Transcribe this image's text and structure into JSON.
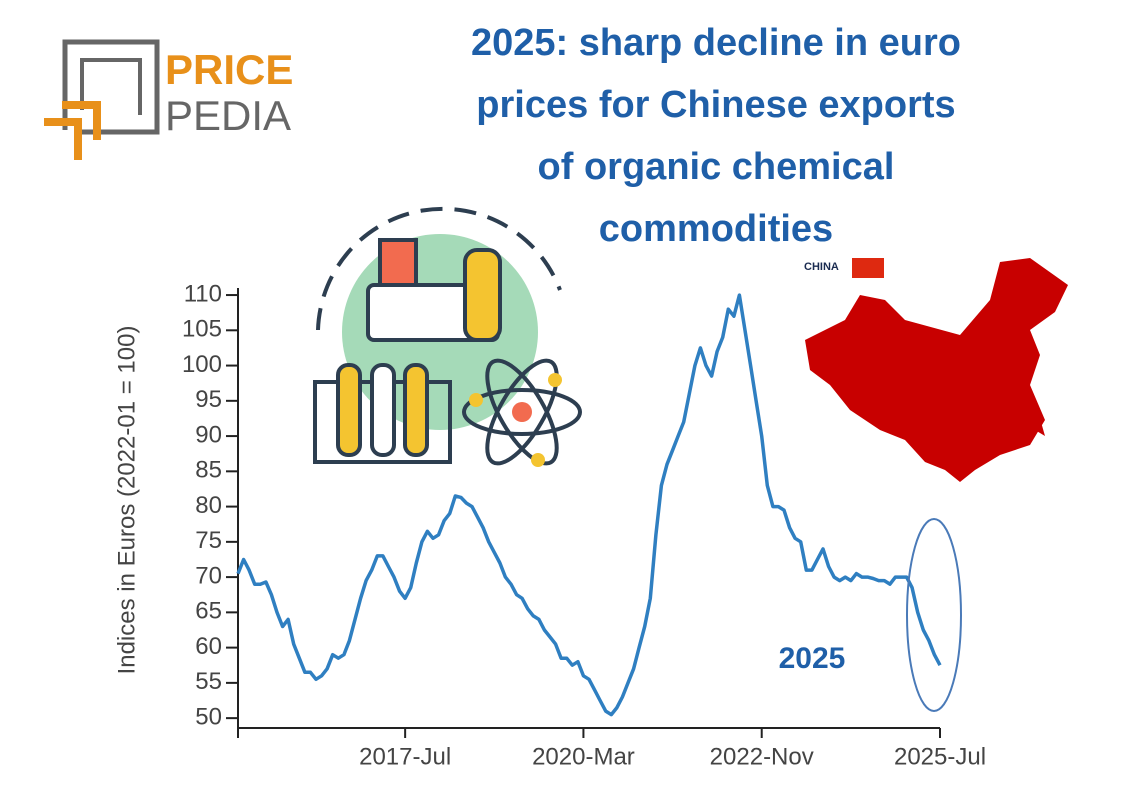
{
  "logo": {
    "line1": "PRICE",
    "line2": "PEDIA"
  },
  "map": {
    "label": "CHINA"
  },
  "chart_data": {
    "type": "line",
    "title": "2025: sharp decline in euro prices for Chinese exports of organic chemical commodities",
    "y_label": "Indices in Euros (2022-01 = 100)",
    "annotation": "2025",
    "color": "#2f7fc1",
    "categories": [
      null,
      null,
      null,
      null,
      null,
      null,
      null,
      null,
      null,
      null,
      null,
      null,
      null,
      null,
      null,
      null,
      null,
      null,
      null,
      null,
      null,
      null,
      null,
      null,
      null,
      null,
      null,
      null,
      null,
      null,
      "2017-Jul",
      null,
      null,
      null,
      null,
      null,
      null,
      null,
      null,
      null,
      null,
      null,
      null,
      null,
      null,
      null,
      null,
      null,
      null,
      null,
      null,
      null,
      null,
      null,
      null,
      null,
      null,
      null,
      null,
      null,
      null,
      null,
      "2020-Mar",
      null,
      null,
      null,
      null,
      null,
      null,
      null,
      null,
      null,
      null,
      null,
      null,
      null,
      null,
      null,
      null,
      null,
      null,
      null,
      null,
      null,
      null,
      null,
      null,
      null,
      null,
      null,
      null,
      null,
      null,
      null,
      "2022-Nov",
      null,
      null,
      null,
      null,
      null,
      null,
      null,
      null,
      null,
      null,
      null,
      null,
      null,
      null,
      null,
      null,
      null,
      null,
      null,
      null,
      null,
      null,
      null,
      null,
      null,
      null,
      null,
      null,
      null,
      null,
      null,
      "2025-Jul"
    ],
    "values": [
      70.5,
      72.5,
      71,
      69,
      69,
      69.3,
      67.5,
      65,
      63,
      64,
      60.5,
      58.5,
      56.5,
      56.5,
      55.5,
      56,
      57,
      59,
      58.5,
      59,
      61,
      64,
      67,
      69.5,
      71,
      73,
      73,
      71.5,
      70,
      68,
      67,
      68.5,
      72,
      75,
      76.5,
      75.5,
      76,
      78,
      79,
      81.5,
      81.3,
      80.5,
      80,
      78.5,
      77,
      75,
      73.5,
      72,
      70,
      69,
      67.5,
      67,
      65.5,
      64.5,
      64,
      62.5,
      61.5,
      60.5,
      58.5,
      58.5,
      57.5,
      58,
      56,
      55.5,
      54,
      52.5,
      51,
      50.5,
      51.5,
      53,
      55,
      57,
      60,
      63,
      67,
      76,
      83,
      86,
      88,
      90,
      92,
      96,
      100,
      102.5,
      100,
      98.5,
      102,
      104,
      108,
      107,
      110,
      105,
      100,
      95,
      90,
      83,
      80,
      80,
      79.5,
      77,
      75.5,
      75,
      71,
      71,
      72.5,
      74,
      71.5,
      70,
      69.5,
      70,
      69.5,
      70.5,
      70,
      70,
      69.8,
      69.5,
      69.5,
      69,
      70,
      70,
      70,
      68.5,
      65,
      62.5,
      61,
      59,
      57.5
    ],
    "ylim": [
      48.6,
      111
    ],
    "yticks": [
      50,
      55,
      60,
      65,
      70,
      75,
      80,
      85,
      90,
      95,
      100,
      105,
      110
    ]
  }
}
